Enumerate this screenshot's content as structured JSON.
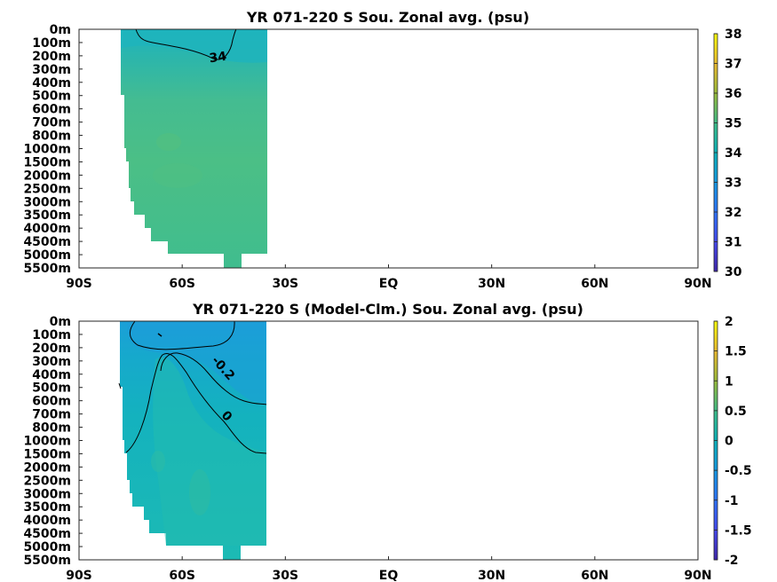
{
  "chart_data": [
    {
      "type": "heatmap",
      "title": "YR 071-220 S Sou. Zonal avg. (psu)",
      "x_ticks": [
        "90S",
        "60S",
        "30S",
        "EQ",
        "30N",
        "60N",
        "90N"
      ],
      "y_ticks": [
        "0m",
        "100m",
        "200m",
        "300m",
        "400m",
        "500m",
        "600m",
        "700m",
        "800m",
        "1000m",
        "1500m",
        "2000m",
        "2500m",
        "3000m",
        "3500m",
        "4000m",
        "4500m",
        "5000m",
        "5500m"
      ],
      "x_range_deg": [
        -90,
        90
      ],
      "colorbar": {
        "min": 30,
        "max": 38,
        "ticks": [
          "30",
          "31",
          "32",
          "33",
          "34",
          "35",
          "36",
          "37",
          "38"
        ]
      },
      "data_extent_deg": [
        -78,
        -35
      ],
      "field": [
        {
          "depth": "0-200m",
          "value": 33.9
        },
        {
          "depth": "200-500m",
          "value": 34.3
        },
        {
          "depth": "500-1000m",
          "value": 34.6
        },
        {
          "depth": "1000-2500m",
          "value": 34.7
        },
        {
          "depth": "2500-5500m",
          "value": 34.7
        }
      ],
      "contours": [
        {
          "level": 34,
          "label": "34"
        }
      ]
    },
    {
      "type": "heatmap",
      "title": "YR 071-220 S (Model-Clm.) Sou. Zonal avg. (psu)",
      "x_ticks": [
        "90S",
        "60S",
        "30S",
        "EQ",
        "30N",
        "60N",
        "90N"
      ],
      "y_ticks": [
        "0m",
        "100m",
        "200m",
        "300m",
        "400m",
        "500m",
        "600m",
        "700m",
        "800m",
        "1000m",
        "1500m",
        "2000m",
        "2500m",
        "3000m",
        "3500m",
        "4000m",
        "4500m",
        "5000m",
        "5500m"
      ],
      "x_range_deg": [
        -90,
        90
      ],
      "colorbar": {
        "min": -2,
        "max": 2,
        "ticks": [
          "-2",
          "-1.5",
          "-1",
          "-0.5",
          "0",
          "0.5",
          "1",
          "1.5",
          "2"
        ]
      },
      "data_extent_deg": [
        -78,
        -35
      ],
      "field": [
        {
          "depth": "0-200m",
          "value": -0.3
        },
        {
          "depth": "200-700m",
          "value": -0.2
        },
        {
          "depth": "700-1500m",
          "value": 0.0
        },
        {
          "depth": "1500-5500m",
          "value": 0.05
        }
      ],
      "contours": [
        {
          "level": -0.2,
          "label": "-0.2"
        },
        {
          "level": 0,
          "label": "0"
        }
      ]
    }
  ],
  "colors": {
    "panel1_top": "#1ab3b6",
    "panel1_main": "#4cbe88",
    "panel1_deep": "#3fbd8e",
    "panel2_top": "#1f9fd6",
    "panel2_mid": "#15b3bd",
    "panel2_deep": "#1dbab4",
    "panel2_green": "#30bca2"
  }
}
